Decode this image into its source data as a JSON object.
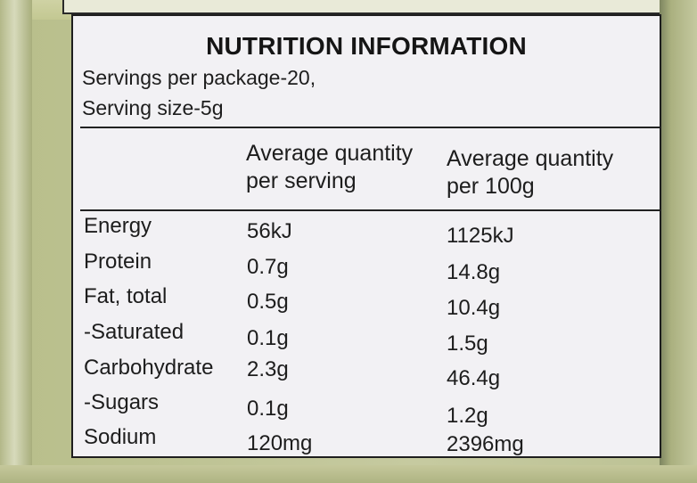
{
  "label": {
    "title": "NUTRITION INFORMATION",
    "servings_per_package": "Servings per package-20,",
    "serving_size": "Serving size-5g",
    "columns": {
      "per_serving_line1": "Average quantity",
      "per_serving_line2": "per serving",
      "per_100g_line1": "Average quantity",
      "per_100g_line2": "per 100g"
    },
    "rows": [
      {
        "name": "Energy",
        "per_serving": "56kJ",
        "per_100g": "1125kJ"
      },
      {
        "name": "Protein",
        "per_serving": "0.7g",
        "per_100g": "14.8g"
      },
      {
        "name": "Fat, total",
        "per_serving": "0.5g",
        "per_100g": "10.4g"
      },
      {
        "name": "-Saturated",
        "per_serving": "0.1g",
        "per_100g": "1.5g"
      },
      {
        "name": "Carbohydrate",
        "per_serving": "2.3g",
        "per_100g": "46.4g"
      },
      {
        "name": "-Sugars",
        "per_serving": "0.1g",
        "per_100g": "1.2g"
      },
      {
        "name": "Sodium",
        "per_serving": "120mg",
        "per_100g": "2396mg"
      }
    ]
  },
  "colors": {
    "packaging": "#c6caa0",
    "panel_background": "#f2f1f4",
    "text": "#1d1d1d"
  }
}
